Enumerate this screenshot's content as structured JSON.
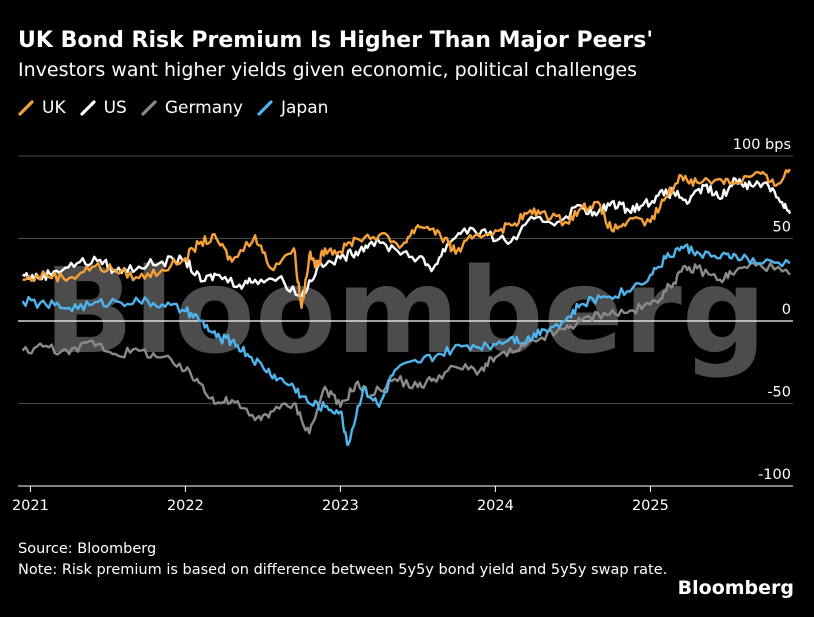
{
  "title": "UK Bond Risk Premium Is Higher Than Major Peers'",
  "subtitle": "Investors want higher yields given economic, political challenges",
  "source": "Source: Bloomberg",
  "note": "Note: Risk premium is based on difference between 5y5y bond yield and 5y5y swap rate.",
  "brand": "Bloomberg",
  "watermark": "Bloomberg",
  "chart_data": {
    "type": "line",
    "title": "UK Bond Risk Premium Is Higher Than Major Peers'",
    "ylabel": "bps",
    "ylim": [
      -100,
      100
    ],
    "xlim": [
      2020.92,
      2025.92
    ],
    "y_ticks": [
      {
        "value": 100,
        "label": "100 bps"
      },
      {
        "value": 50,
        "label": "50"
      },
      {
        "value": 0,
        "label": "0"
      },
      {
        "value": -50,
        "label": "-50"
      },
      {
        "value": -100,
        "label": "-100"
      }
    ],
    "x_ticks": [
      {
        "value": 2021,
        "label": "2021"
      },
      {
        "value": 2022,
        "label": "2022"
      },
      {
        "value": 2023,
        "label": "2023"
      },
      {
        "value": 2024,
        "label": "2024"
      },
      {
        "value": 2025,
        "label": "2025"
      }
    ],
    "series": [
      {
        "name": "UK",
        "color": "#f5a139",
        "x": [
          2020.95,
          2021.1,
          2021.25,
          2021.4,
          2021.55,
          2021.7,
          2021.85,
          2022.0,
          2022.1,
          2022.2,
          2022.3,
          2022.45,
          2022.55,
          2022.7,
          2022.75,
          2022.8,
          2022.85,
          2022.9,
          2023.0,
          2023.1,
          2023.25,
          2023.4,
          2023.5,
          2023.6,
          2023.7,
          2023.75,
          2023.85,
          2024.0,
          2024.1,
          2024.2,
          2024.3,
          2024.45,
          2024.55,
          2024.65,
          2024.75,
          2024.85,
          2025.0,
          2025.1,
          2025.2,
          2025.3,
          2025.45,
          2025.55,
          2025.7,
          2025.8,
          2025.9
        ],
        "values": [
          25,
          28,
          26,
          33,
          31,
          26,
          31,
          38,
          48,
          50,
          36,
          52,
          32,
          44,
          8,
          40,
          33,
          44,
          42,
          50,
          52,
          46,
          58,
          56,
          46,
          42,
          50,
          55,
          58,
          65,
          66,
          60,
          68,
          72,
          55,
          60,
          60,
          75,
          88,
          84,
          86,
          84,
          90,
          82,
          92
        ]
      },
      {
        "name": "US",
        "color": "#ffffff",
        "x": [
          2020.95,
          2021.05,
          2021.15,
          2021.3,
          2021.45,
          2021.55,
          2021.7,
          2021.85,
          2022.0,
          2022.1,
          2022.2,
          2022.35,
          2022.45,
          2022.6,
          2022.75,
          2022.85,
          2023.0,
          2023.1,
          2023.2,
          2023.35,
          2023.5,
          2023.6,
          2023.7,
          2023.8,
          2023.95,
          2024.1,
          2024.25,
          2024.4,
          2024.55,
          2024.65,
          2024.75,
          2024.85,
          2024.95,
          2025.05,
          2025.15,
          2025.25,
          2025.35,
          2025.45,
          2025.55,
          2025.65,
          2025.75,
          2025.85,
          2025.9
        ],
        "values": [
          28,
          26,
          30,
          35,
          37,
          30,
          33,
          36,
          37,
          24,
          28,
          22,
          25,
          26,
          15,
          32,
          38,
          42,
          48,
          44,
          38,
          32,
          48,
          56,
          52,
          48,
          62,
          60,
          70,
          64,
          72,
          68,
          70,
          76,
          78,
          72,
          82,
          74,
          86,
          82,
          84,
          72,
          65
        ]
      },
      {
        "name": "Germany",
        "color": "#8a8a8a",
        "x": [
          2020.95,
          2021.1,
          2021.25,
          2021.4,
          2021.55,
          2021.7,
          2021.85,
          2022.0,
          2022.1,
          2022.2,
          2022.3,
          2022.45,
          2022.55,
          2022.7,
          2022.8,
          2022.9,
          2023.0,
          2023.1,
          2023.2,
          2023.35,
          2023.5,
          2023.6,
          2023.75,
          2023.9,
          2024.0,
          2024.15,
          2024.3,
          2024.45,
          2024.55,
          2024.7,
          2024.85,
          2025.0,
          2025.1,
          2025.2,
          2025.3,
          2025.45,
          2025.55,
          2025.7,
          2025.9
        ],
        "values": [
          -18,
          -15,
          -20,
          -12,
          -20,
          -18,
          -22,
          -30,
          -38,
          -50,
          -48,
          -60,
          -55,
          -50,
          -68,
          -40,
          -52,
          -38,
          -45,
          -35,
          -40,
          -35,
          -28,
          -30,
          -22,
          -18,
          -10,
          -5,
          0,
          5,
          5,
          10,
          18,
          30,
          32,
          25,
          30,
          35,
          28
        ]
      },
      {
        "name": "Japan",
        "color": "#4fb3ec",
        "x": [
          2020.95,
          2021.1,
          2021.25,
          2021.4,
          2021.55,
          2021.7,
          2021.85,
          2022.0,
          2022.1,
          2022.2,
          2022.3,
          2022.4,
          2022.5,
          2022.6,
          2022.7,
          2022.8,
          2022.9,
          2023.0,
          2023.05,
          2023.15,
          2023.25,
          2023.35,
          2023.5,
          2023.65,
          2023.8,
          2023.95,
          2024.1,
          2024.2,
          2024.3,
          2024.45,
          2024.55,
          2024.7,
          2024.85,
          2025.0,
          2025.1,
          2025.2,
          2025.3,
          2025.45,
          2025.55,
          2025.7,
          2025.9
        ],
        "values": [
          12,
          10,
          8,
          10,
          12,
          12,
          10,
          6,
          0,
          -10,
          -12,
          -20,
          -28,
          -35,
          -40,
          -50,
          -52,
          -55,
          -75,
          -40,
          -52,
          -30,
          -25,
          -20,
          -15,
          -15,
          -10,
          -12,
          -5,
          0,
          10,
          15,
          18,
          28,
          38,
          45,
          42,
          38,
          40,
          35,
          35
        ]
      }
    ]
  }
}
